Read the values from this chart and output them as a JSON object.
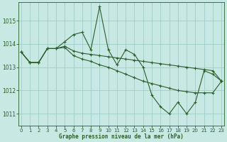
{
  "title": "Graphe pression niveau de la mer (hPa)",
  "bg_color": "#c8e8e4",
  "grid_color": "#a0ccC8",
  "line_color": "#2a5e2a",
  "xlim": [
    -0.3,
    23.3
  ],
  "ylim": [
    1010.5,
    1015.8
  ],
  "yticks": [
    1011,
    1012,
    1013,
    1014,
    1015
  ],
  "xticks": [
    0,
    1,
    2,
    3,
    4,
    5,
    6,
    7,
    8,
    9,
    10,
    11,
    12,
    13,
    14,
    15,
    16,
    17,
    18,
    19,
    20,
    21,
    22,
    23
  ],
  "series": [
    [
      1013.65,
      1013.2,
      1013.2,
      1013.8,
      1013.8,
      1014.1,
      1014.4,
      1014.5,
      1013.75,
      1015.6,
      1013.75,
      1013.1,
      1013.75,
      1013.55,
      1013.0,
      1011.8,
      1011.3,
      1011.0,
      1011.5,
      1011.0,
      1011.5,
      1012.85,
      1012.7,
      1012.4
    ],
    [
      1013.65,
      1013.2,
      1013.2,
      1013.8,
      1013.8,
      1013.9,
      1013.7,
      1013.6,
      1013.55,
      1013.5,
      1013.45,
      1013.4,
      1013.35,
      1013.3,
      1013.25,
      1013.2,
      1013.15,
      1013.1,
      1013.05,
      1013.0,
      1012.95,
      1012.9,
      1012.85,
      1012.4
    ],
    [
      1013.65,
      1013.2,
      1013.2,
      1013.8,
      1013.8,
      1013.85,
      1013.5,
      1013.35,
      1013.25,
      1013.1,
      1013.0,
      1012.85,
      1012.7,
      1012.55,
      1012.4,
      1012.3,
      1012.2,
      1012.1,
      1012.0,
      1011.95,
      1011.9,
      1011.9,
      1011.9,
      1012.4
    ]
  ],
  "label_fontsize": 5.5,
  "tick_fontsize": 5.0
}
